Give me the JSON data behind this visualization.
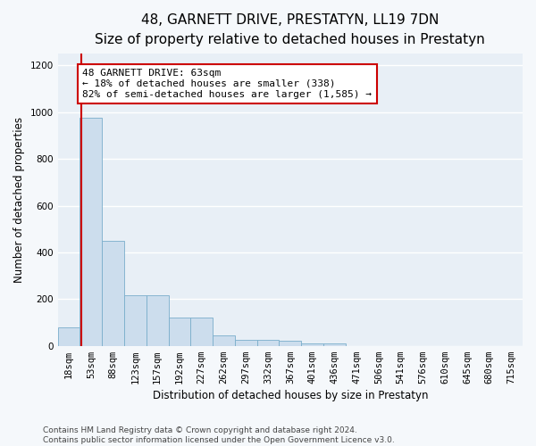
{
  "title": "48, GARNETT DRIVE, PRESTATYN, LL19 7DN",
  "subtitle": "Size of property relative to detached houses in Prestatyn",
  "xlabel": "Distribution of detached houses by size in Prestatyn",
  "ylabel": "Number of detached properties",
  "bin_labels": [
    "18sqm",
    "53sqm",
    "88sqm",
    "123sqm",
    "157sqm",
    "192sqm",
    "227sqm",
    "262sqm",
    "297sqm",
    "332sqm",
    "367sqm",
    "401sqm",
    "436sqm",
    "471sqm",
    "506sqm",
    "541sqm",
    "576sqm",
    "610sqm",
    "645sqm",
    "680sqm",
    "715sqm"
  ],
  "bar_heights": [
    80,
    975,
    450,
    215,
    215,
    120,
    120,
    45,
    25,
    25,
    20,
    10,
    10,
    0,
    0,
    0,
    0,
    0,
    0,
    0,
    0
  ],
  "bar_color": "#ccdded",
  "bar_edge_color": "#7aaecb",
  "property_line_color": "#cc0000",
  "annotation_text": "48 GARNETT DRIVE: 63sqm\n← 18% of detached houses are smaller (338)\n82% of semi-detached houses are larger (1,585) →",
  "annotation_box_facecolor": "#ffffff",
  "annotation_box_edgecolor": "#cc0000",
  "ylim": [
    0,
    1250
  ],
  "yticks": [
    0,
    200,
    400,
    600,
    800,
    1000,
    1200
  ],
  "footer": "Contains HM Land Registry data © Crown copyright and database right 2024.\nContains public sector information licensed under the Open Government Licence v3.0.",
  "plot_bg_color": "#e8eff6",
  "fig_bg_color": "#f5f8fb",
  "grid_color": "#ffffff",
  "title_fontsize": 11,
  "subtitle_fontsize": 9.5,
  "ylabel_fontsize": 8.5,
  "xlabel_fontsize": 8.5,
  "tick_fontsize": 7.5,
  "annotation_fontsize": 8,
  "footer_fontsize": 6.5
}
